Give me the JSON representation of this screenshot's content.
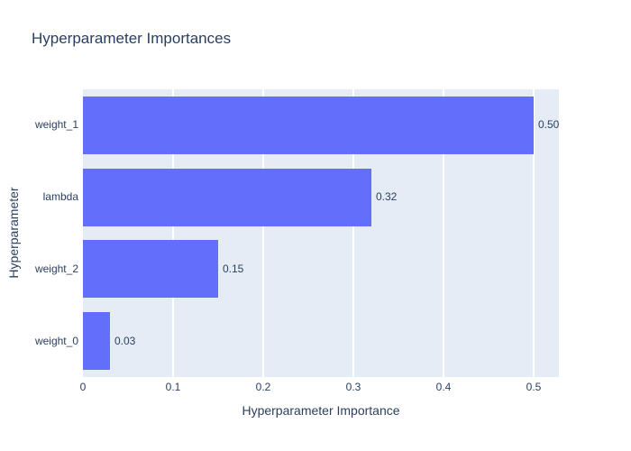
{
  "title": "Hyperparameter Importances",
  "chart_data": {
    "type": "bar",
    "orientation": "horizontal",
    "title": "Hyperparameter Importances",
    "xlabel": "Hyperparameter Importance",
    "ylabel": "Hyperparameter",
    "categories": [
      "weight_1",
      "lambda",
      "weight_2",
      "weight_0"
    ],
    "values": [
      0.5,
      0.32,
      0.15,
      0.03
    ],
    "value_labels": [
      "0.50",
      "0.32",
      "0.15",
      "0.03"
    ],
    "xlim": [
      0,
      0.528
    ],
    "xticks": [
      0,
      0.1,
      0.2,
      0.3,
      0.4,
      0.5
    ],
    "xtick_labels": [
      "0",
      "0.1",
      "0.2",
      "0.3",
      "0.4",
      "0.5"
    ],
    "grid": true,
    "legend": false,
    "colors": {
      "bar": "#636efa",
      "plot_background": "#e5ecf6",
      "gridline": "#ffffff",
      "text": "#2a3f5f",
      "canvas": "#ffffff"
    }
  }
}
